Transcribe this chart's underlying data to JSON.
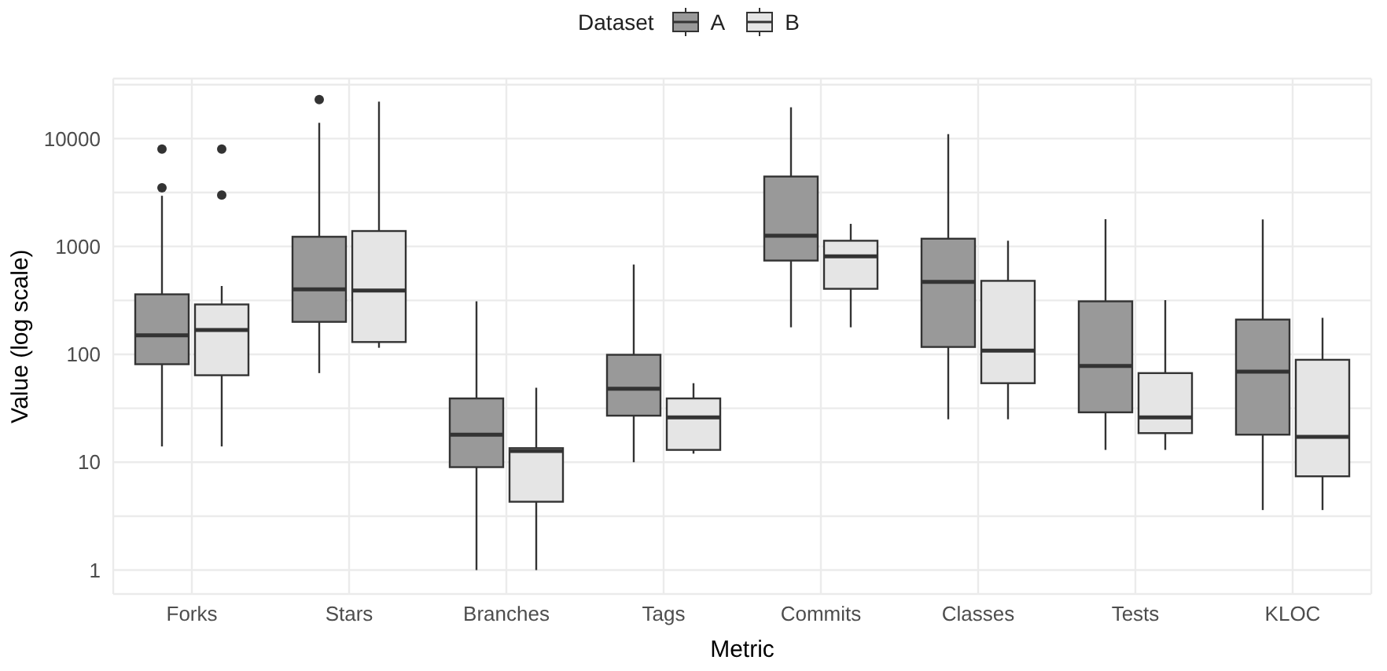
{
  "chart_data": {
    "type": "box",
    "xlabel": "Metric",
    "ylabel": "Value (log scale)",
    "legend_title": "Dataset",
    "legend": "top",
    "grid": true,
    "log": "y",
    "categories": [
      "Forks",
      "Stars",
      "Branches",
      "Tags",
      "Commits",
      "Classes",
      "Tests",
      "KLOC"
    ],
    "ylim": [
      0.6,
      36000
    ],
    "yticks": [
      1,
      {
        "value": 3.16,
        "label": null
      },
      10,
      {
        "value": 31.6,
        "label": null
      },
      100,
      {
        "value": 316,
        "label": null
      },
      1000,
      {
        "value": 3160,
        "label": null
      },
      10000,
      {
        "value": 31600,
        "label": null
      }
    ],
    "series": [
      {
        "name": "A",
        "color": "#999999",
        "boxes": [
          {
            "low": 14,
            "q1": 81,
            "median": 150,
            "q3": 360,
            "high": 2950,
            "outliers": [
              3500,
              8000
            ]
          },
          {
            "low": 67,
            "q1": 200,
            "median": 400,
            "q3": 1230,
            "high": 14000,
            "outliers": [
              23000
            ]
          },
          {
            "low": 1,
            "q1": 9,
            "median": 18,
            "q3": 39,
            "high": 310
          },
          {
            "low": 10,
            "q1": 27,
            "median": 48,
            "q3": 99,
            "high": 680
          },
          {
            "low": 178,
            "q1": 740,
            "median": 1260,
            "q3": 4450,
            "high": 19500
          },
          {
            "low": 25,
            "q1": 117,
            "median": 470,
            "q3": 1180,
            "high": 11000
          },
          {
            "low": 13,
            "q1": 29,
            "median": 78,
            "q3": 310,
            "high": 1790
          },
          {
            "low": 3.6,
            "q1": 18,
            "median": 69,
            "q3": 210,
            "high": 1780
          }
        ]
      },
      {
        "name": "B",
        "color": "#e5e5e5",
        "boxes": [
          {
            "low": 14,
            "q1": 64,
            "median": 168,
            "q3": 290,
            "high": 430,
            "outliers": [
              3000,
              8000
            ]
          },
          {
            "low": 115,
            "q1": 130,
            "median": 390,
            "q3": 1390,
            "high": 22000
          },
          {
            "low": 1,
            "q1": 4.3,
            "median": 12.7,
            "q3": 13.5,
            "high": 49
          },
          {
            "low": 12,
            "q1": 13,
            "median": 26,
            "q3": 39,
            "high": 54
          },
          {
            "low": 178,
            "q1": 405,
            "median": 810,
            "q3": 1130,
            "high": 1620
          },
          {
            "low": 25,
            "q1": 54,
            "median": 108,
            "q3": 480,
            "high": 1130
          },
          {
            "low": 13,
            "q1": 18.6,
            "median": 26,
            "q3": 67,
            "high": 318
          },
          {
            "low": 3.6,
            "q1": 7.4,
            "median": 17.2,
            "q3": 89,
            "high": 218
          }
        ]
      }
    ]
  }
}
